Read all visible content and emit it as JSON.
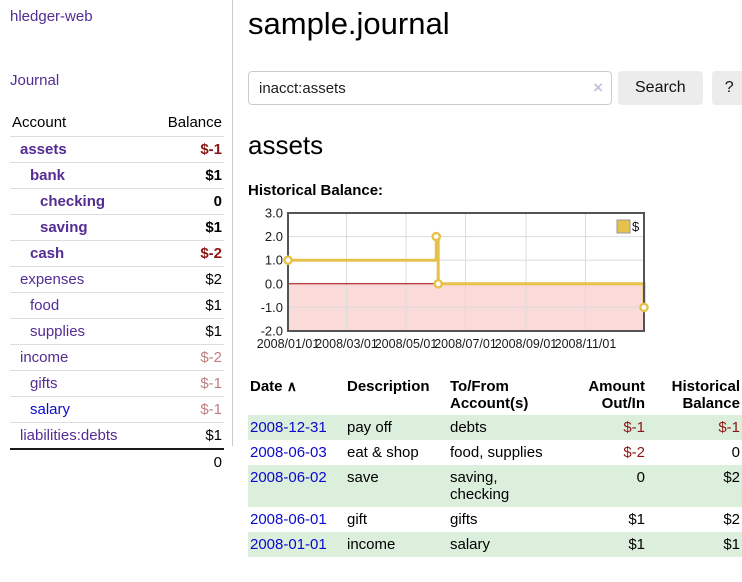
{
  "app": {
    "title": "hledger-web"
  },
  "colors": {
    "link_purple": "#542c93",
    "link_blue": "#0a0acc",
    "negative_strong": "#8e1515",
    "negative_muted": "#bd7f7f",
    "row_stripe_green": "#dceedc",
    "chart_line_yellow": "#e7c14a",
    "chart_negative_region": "#fbdada",
    "chart_zero_line": "#a00000",
    "chart_border": "#545454",
    "chart_grid": "#dcdcdc"
  },
  "sidebar": {
    "journal_label": "Journal",
    "accounts_header": {
      "account": "Account",
      "balance": "Balance"
    },
    "accounts": [
      {
        "name": "assets",
        "balance": "$-1",
        "level": 1,
        "bold": true,
        "balance_tone": "neg-strong"
      },
      {
        "name": "bank",
        "balance": "$1",
        "level": 2,
        "bold": true,
        "balance_tone": ""
      },
      {
        "name": "checking",
        "balance": "0",
        "level": 3,
        "bold": true,
        "balance_tone": ""
      },
      {
        "name": "saving",
        "balance": "$1",
        "level": 3,
        "bold": true,
        "balance_tone": ""
      },
      {
        "name": "cash",
        "balance": "$-2",
        "level": 2,
        "bold": true,
        "balance_tone": "neg-strong"
      },
      {
        "name": "expenses",
        "balance": "$2",
        "level": 1,
        "bold": false,
        "balance_tone": ""
      },
      {
        "name": "food",
        "balance": "$1",
        "level": 2,
        "bold": false,
        "balance_tone": ""
      },
      {
        "name": "supplies",
        "balance": "$1",
        "level": 2,
        "bold": false,
        "balance_tone": ""
      },
      {
        "name": "income",
        "balance": "$-2",
        "level": 1,
        "bold": false,
        "balance_tone": "neg-muted"
      },
      {
        "name": "gifts",
        "balance": "$-1",
        "level": 2,
        "bold": false,
        "balance_tone": "neg-muted"
      },
      {
        "name": "salary",
        "balance": "$-1",
        "level": 2,
        "bold": false,
        "balance_tone": "neg-muted",
        "blue_link": true
      },
      {
        "name": "liabilities:debts",
        "balance": "$1",
        "level": 1,
        "bold": false,
        "balance_tone": ""
      }
    ],
    "total": "0"
  },
  "main": {
    "title": "sample.journal",
    "search": {
      "value": "inacct:assets",
      "clear_icon": "×",
      "button_label": "Search",
      "help_label": "?"
    },
    "account_heading": "assets",
    "chart_label": "Historical Balance:"
  },
  "chart_data": {
    "type": "line",
    "style": "step-after",
    "title": "Historical Balance",
    "series": [
      {
        "name": "$",
        "points": [
          [
            "2008-01-01",
            1
          ],
          [
            "2008-06-01",
            2
          ],
          [
            "2008-06-03",
            0
          ],
          [
            "2008-12-31",
            -1
          ]
        ]
      }
    ],
    "x_range": [
      "2008-01-01",
      "2008-12-31"
    ],
    "ylim": [
      -2.0,
      3.0
    ],
    "yticks": [
      3.0,
      2.0,
      1.0,
      0.0,
      -1.0,
      -2.0
    ],
    "xticks": [
      "2008/01/01",
      "2008/03/01",
      "2008/05/01",
      "2008/07/01",
      "2008/09/01",
      "2008/11/01"
    ],
    "grid": true,
    "legend": {
      "label": "$",
      "position": "top-right"
    },
    "negative_region_shaded": true
  },
  "register": {
    "headers": {
      "date": "Date",
      "sort_icon": "∧",
      "description": "Description",
      "account": "To/From Account(s)",
      "amount": "Amount Out/In",
      "balance": "Historical Balance"
    },
    "rows": [
      {
        "date": "2008-12-31",
        "description": "pay off",
        "accounts": "debts",
        "amount": "$-1",
        "balance": "$-1"
      },
      {
        "date": "2008-06-03",
        "description": "eat & shop",
        "accounts": "food, supplies",
        "amount": "$-2",
        "balance": "0"
      },
      {
        "date": "2008-06-02",
        "description": "save",
        "accounts": "saving, checking",
        "amount": "0",
        "balance": "$2"
      },
      {
        "date": "2008-06-01",
        "description": "gift",
        "accounts": "gifts",
        "amount": "$1",
        "balance": "$2"
      },
      {
        "date": "2008-01-01",
        "description": "income",
        "accounts": "salary",
        "amount": "$1",
        "balance": "$1"
      }
    ]
  }
}
